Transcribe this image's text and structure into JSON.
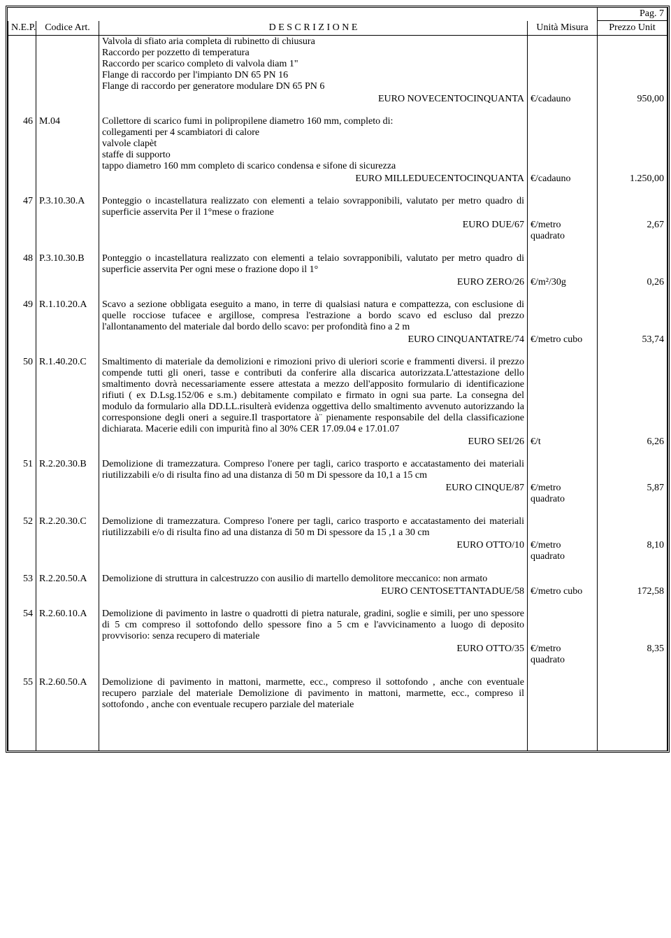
{
  "page_label": "Pag. 7",
  "headers": {
    "nep": "N.E.P.",
    "code": "Codice Art.",
    "desc": "D E S C R I Z I O N E",
    "unit": "Unità Misura",
    "price": "Prezzo Unit"
  },
  "rows": [
    {
      "nep": "",
      "code": "",
      "desc_lines": [
        "Valvola di sfiato aria completa di rubinetto di chiusura",
        "Raccordo per pozzetto di temperatura",
        "Raccordo per scarico completo di valvola diam 1\"",
        "Flange di raccordo per l'impianto DN 65 PN 16",
        "Flange di raccordo per generatore modulare DN 65 PN 6"
      ],
      "price_words": "EURO NOVECENTOCINQUANTA",
      "unit": "€/cadauno",
      "price": "950,00"
    },
    {
      "nep": "46",
      "code": "M.04",
      "desc_lines": [
        "Collettore di scarico fumi in polipropilene diametro 160 mm, completo di:",
        "collegamenti per 4 scambiatori di calore",
        "valvole clapèt",
        "staffe di supporto",
        "tappo diametro 160 mm completo di scarico condensa e sifone di sicurezza"
      ],
      "price_words": "EURO MILLEDUECENTOCINQUANTA",
      "unit": "€/cadauno",
      "price": "1.250,00"
    },
    {
      "nep": "47",
      "code": "P.3.10.30.A",
      "desc_lines": [
        "Ponteggio o incastellatura realizzato con elementi a telaio sovrapponibili, valutato per metro quadro di superficie asservita Per il 1°mese o frazione"
      ],
      "price_words": "EURO DUE/67",
      "unit": "€/metro quadrato",
      "price": "2,67"
    },
    {
      "nep": "48",
      "code": "P.3.10.30.B",
      "desc_lines": [
        "Ponteggio o incastellatura realizzato con elementi a telaio sovrapponibili, valutato per metro quadro di superficie asservita Per ogni mese o frazione dopo il 1°"
      ],
      "price_words": "EURO ZERO/26",
      "unit": "€/m²/30g",
      "price": "0,26"
    },
    {
      "nep": "49",
      "code": "R.1.10.20.A",
      "desc_lines": [
        "Scavo a sezione obbligata eseguito a mano, in terre di qualsiasi natura e compattezza, con esclusione di quelle rocciose tufacee e argillose, compresa l'estrazione a bordo scavo ed escluso dal prezzo l'allontanamento del materiale dal bordo dello scavo: per profondità  fino a 2 m"
      ],
      "price_words": "EURO CINQUANTATRE/74",
      "unit": "€/metro cubo",
      "price": "53,74"
    },
    {
      "nep": "50",
      "code": "R.1.40.20.C",
      "desc_lines": [
        "Smaltimento di materiale da demolizioni e rimozioni privo di uleriori scorie e frammenti diversi. il prezzo compende tutti gli oneri, tasse e contributi da conferire alla discarica autorizzata.L'attestazione dello smaltimento dovrà  necessariamente essere attestata a mezzo dell'apposito formulario di identificazione rifiuti ( ex D.Lsg.152/06 e s.m.) debitamente compilato e firmato in ogni sua parte. La consegna del modulo da formulario alla DD.LL.risulterà  evidenza oggettiva dello smaltimento avvenuto autorizzando la corresponsione degli oneri a seguire.Il trasportatore à¨ pienamente responsabile del della classificazione dichiarata. Macerie edili con impurità  fino al 30% CER 17.09.04 e 17.01.07"
      ],
      "price_words": "EURO SEI/26",
      "unit": "€/t",
      "price": "6,26"
    },
    {
      "nep": "51",
      "code": "R.2.20.30.B",
      "desc_lines": [
        "Demolizione di tramezzatura. Compreso l'onere per tagli, carico trasporto e accatastamento dei materiali riutilizzabili e/o di risulta fino ad una distanza di 50 m Di spessore da 10,1 a 15 cm"
      ],
      "price_words": "EURO CINQUE/87",
      "unit": "€/metro quadrato",
      "price": "5,87"
    },
    {
      "nep": "52",
      "code": "R.2.20.30.C",
      "desc_lines": [
        "Demolizione di tramezzatura. Compreso l'onere per tagli, carico trasporto e accatastamento dei materiali riutilizzabili e/o di risulta fino ad una distanza di 50 m Di spessore da 15 ,1 a 30 cm"
      ],
      "price_words": "EURO OTTO/10",
      "unit": "€/metro quadrato",
      "price": "8,10"
    },
    {
      "nep": "53",
      "code": "R.2.20.50.A",
      "desc_lines": [
        "Demolizione di struttura in calcestruzzo con ausilio di martello demolitore meccanico: non armato"
      ],
      "price_words": "EURO CENTOSETTANTADUE/58",
      "unit": "€/metro cubo",
      "price": "172,58"
    },
    {
      "nep": "54",
      "code": "R.2.60.10.A",
      "desc_lines": [
        "Demolizione di pavimento in lastre o quadrotti di pietra naturale, gradini, soglie e simili, per uno spessore di 5 cm compreso il sottofondo dello spessore fino a 5 cm e l'avvicinamento a luogo di deposito provvisorio: senza recupero di materiale"
      ],
      "price_words": "EURO OTTO/35",
      "unit": "€/metro quadrato",
      "price": "8,35"
    },
    {
      "nep": "55",
      "code": "R.2.60.50.A",
      "desc_lines": [
        "Demolizione di pavimento in mattoni, marmette, ecc., compreso il sottofondo , anche con eventuale recupero parziale del materiale Demolizione di pavimento in mattoni, marmette, ecc., compreso il sottofondo , anche con eventuale recupero parziale del materiale"
      ],
      "price_words": "",
      "unit": "",
      "price": ""
    }
  ]
}
